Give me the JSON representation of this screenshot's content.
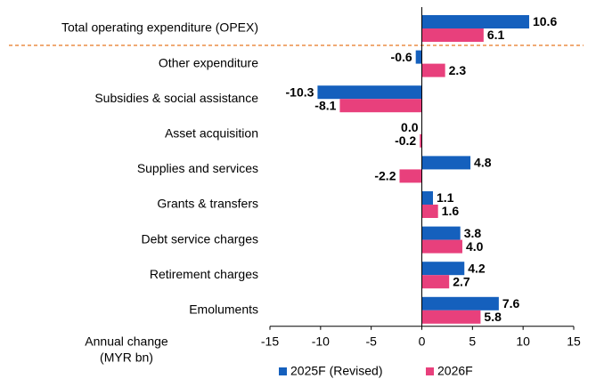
{
  "chart_data": {
    "type": "bar",
    "orientation": "horizontal",
    "categories": [
      "Total operating expenditure (OPEX)",
      "Other expenditure",
      "Subsidies & social assistance",
      "Asset acquisition",
      "Supplies and services",
      "Grants & transfers",
      "Debt service charges",
      "Retirement charges",
      "Emoluments"
    ],
    "series": [
      {
        "name": "2025F (Revised)",
        "color": "#1560bd",
        "values": [
          10.6,
          -0.6,
          -10.3,
          0.0,
          4.8,
          1.1,
          3.8,
          4.2,
          7.6
        ],
        "value_labels": [
          "10.6",
          "-0.6",
          "-10.3",
          "0.0",
          "4.8",
          "1.1",
          "3.8",
          "4.2",
          "7.6"
        ]
      },
      {
        "name": "2026F",
        "color": "#e8407c",
        "values": [
          6.1,
          2.3,
          -8.1,
          -0.2,
          -2.2,
          1.6,
          4.0,
          2.7,
          5.8
        ],
        "value_labels": [
          "6.1",
          "2.3",
          "-8.1",
          "-0.2",
          "-2.2",
          "1.6",
          "4.0",
          "2.7",
          "5.8"
        ]
      }
    ],
    "xlabel": [
      "Annual change",
      "(MYR bn)"
    ],
    "xlim": [
      -15,
      15
    ],
    "xticks": [
      -15,
      -10,
      -5,
      0,
      5,
      10,
      15
    ],
    "legend": "bottom"
  }
}
